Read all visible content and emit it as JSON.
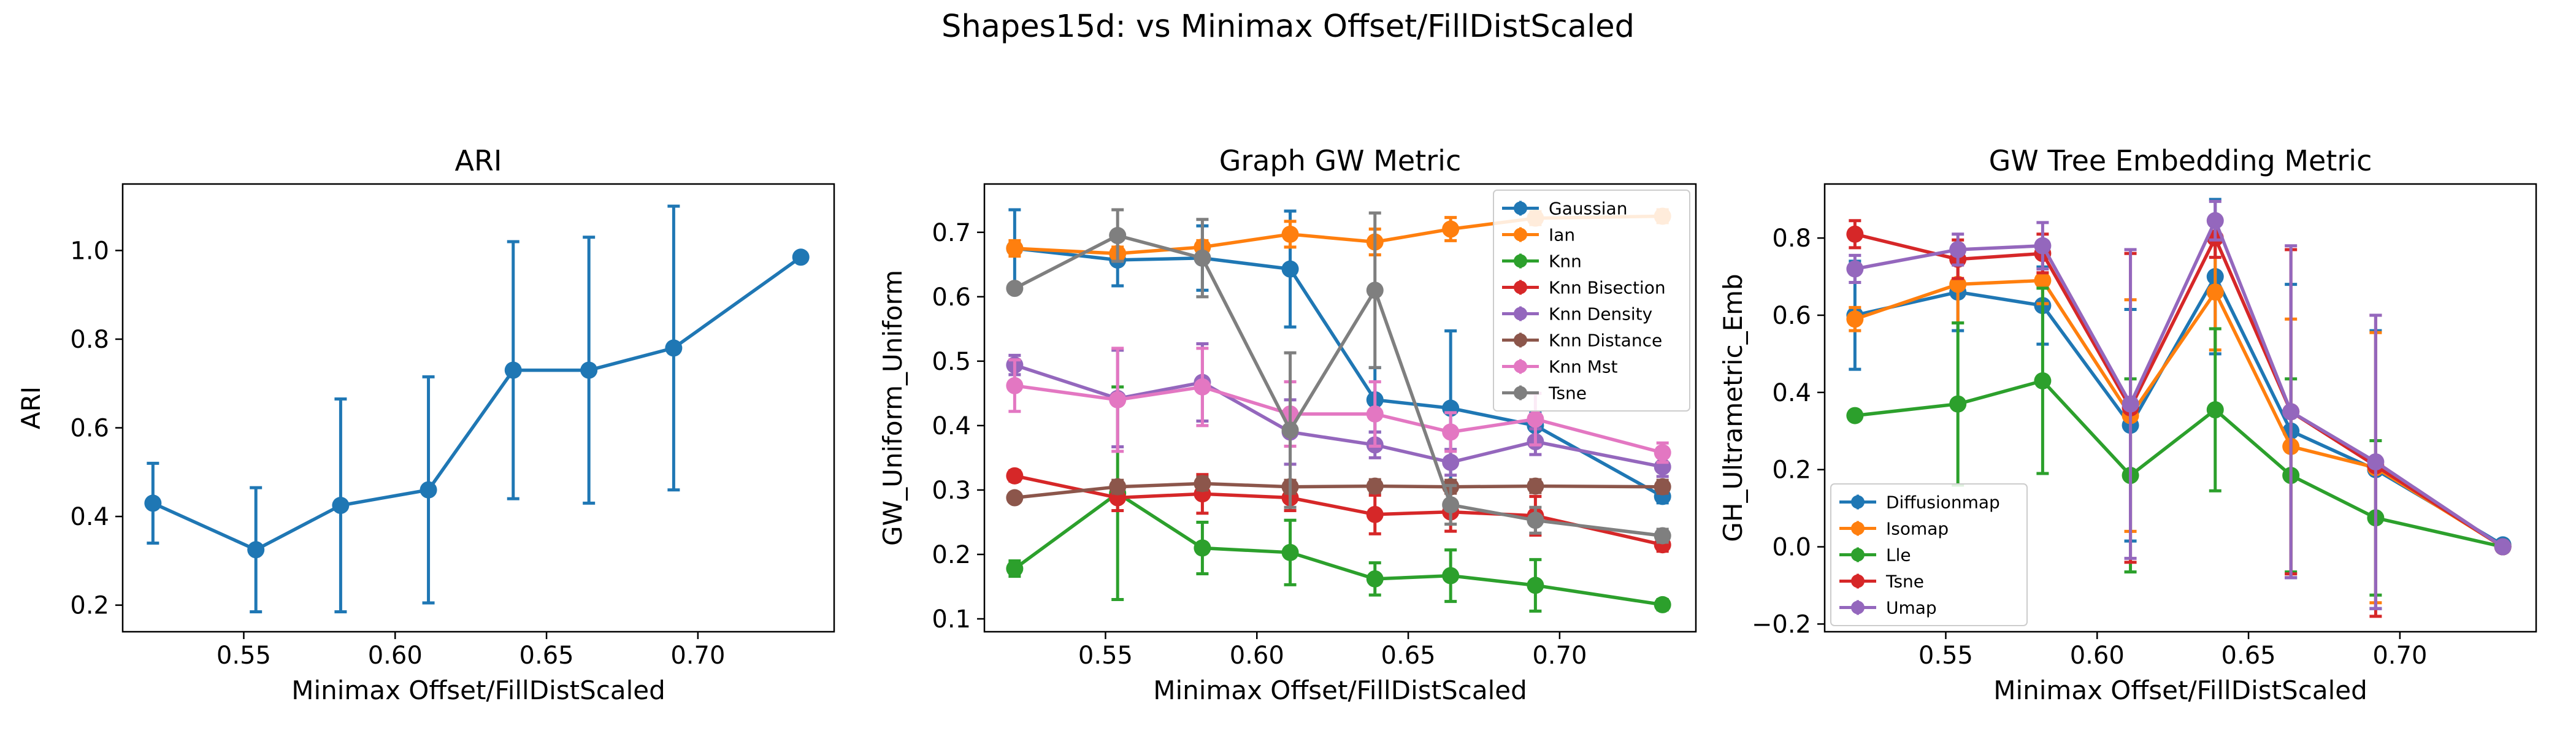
{
  "suptitle": "Shapes15d: vs Minimax Offset/FillDistScaled",
  "colors": {
    "blue": "#1f77b4",
    "orange": "#ff7f0e",
    "green": "#2ca02c",
    "red": "#d62728",
    "purple": "#9467bd",
    "brown": "#8c564b",
    "pink": "#e377c2",
    "gray": "#7f7f7f"
  },
  "chart_data": [
    {
      "type": "line",
      "title": "ARI",
      "xlabel": "Minimax Offset/FillDistScaled",
      "ylabel": "ARI",
      "xlim": [
        0.51,
        0.745
      ],
      "ylim": [
        0.14,
        1.15
      ],
      "xticks": [
        "0.55",
        "0.60",
        "0.65",
        "0.70"
      ],
      "yticks": [
        "0.2",
        "0.4",
        "0.6",
        "0.8",
        "1.0"
      ],
      "grid": false,
      "x": [
        0.52,
        0.554,
        0.582,
        0.611,
        0.639,
        0.664,
        0.692,
        0.734
      ],
      "series": [
        {
          "color": "blue",
          "y": [
            0.43,
            0.325,
            0.425,
            0.46,
            0.73,
            0.73,
            0.78,
            0.985
          ],
          "err": [
            0.09,
            0.14,
            0.24,
            0.255,
            0.29,
            0.3,
            0.32,
            0.0
          ]
        }
      ]
    },
    {
      "type": "line",
      "title": "Graph GW Metric",
      "xlabel": "Minimax Offset/FillDistScaled",
      "ylabel": "GW_Uniform_Uniform",
      "xlim": [
        0.51,
        0.745
      ],
      "ylim": [
        0.08,
        0.775
      ],
      "xticks": [
        "0.55",
        "0.60",
        "0.65",
        "0.70"
      ],
      "yticks": [
        "0.1",
        "0.2",
        "0.3",
        "0.4",
        "0.5",
        "0.6",
        "0.7"
      ],
      "grid": false,
      "legend": "top-right",
      "x": [
        0.52,
        0.554,
        0.582,
        0.611,
        0.639,
        0.664,
        0.692,
        0.734
      ],
      "series": [
        {
          "name": "Gaussian",
          "color": "blue",
          "y": [
            0.675,
            0.657,
            0.66,
            0.643,
            0.44,
            0.427,
            0.4,
            0.29
          ],
          "err": [
            0.06,
            0.04,
            0.05,
            0.09,
            0.05,
            0.12,
            0.02,
            0.01
          ]
        },
        {
          "name": "Ian",
          "color": "orange",
          "y": [
            0.675,
            0.667,
            0.677,
            0.697,
            0.685,
            0.705,
            0.722,
            0.725
          ],
          "err": [
            0.012,
            0.01,
            0.01,
            0.02,
            0.02,
            0.018,
            0.01,
            0.01
          ]
        },
        {
          "name": "Knn",
          "color": "green",
          "y": [
            0.178,
            0.295,
            0.21,
            0.203,
            0.162,
            0.167,
            0.152,
            0.122
          ],
          "err": [
            0.012,
            0.165,
            0.04,
            0.05,
            0.025,
            0.04,
            0.04,
            0.008
          ]
        },
        {
          "name": "Knn Bisection",
          "color": "red",
          "y": [
            0.322,
            0.288,
            0.294,
            0.288,
            0.262,
            0.266,
            0.26,
            0.215
          ],
          "err": [
            0.008,
            0.02,
            0.03,
            0.02,
            0.03,
            0.03,
            0.03,
            0.01
          ]
        },
        {
          "name": "Knn Density",
          "color": "purple",
          "y": [
            0.494,
            0.442,
            0.467,
            0.39,
            0.37,
            0.343,
            0.375,
            0.336
          ],
          "err": [
            0.015,
            0.075,
            0.06,
            0.05,
            0.02,
            0.02,
            0.02,
            0.015
          ]
        },
        {
          "name": "Knn Distance",
          "color": "brown",
          "y": [
            0.288,
            0.305,
            0.31,
            0.305,
            0.306,
            0.305,
            0.306,
            0.305
          ],
          "err": [
            0.005,
            0.01,
            0.01,
            0.01,
            0.01,
            0.01,
            0.01,
            0.01
          ]
        },
        {
          "name": "Knn Mst",
          "color": "pink",
          "y": [
            0.462,
            0.44,
            0.46,
            0.418,
            0.418,
            0.39,
            0.41,
            0.358
          ],
          "err": [
            0.04,
            0.08,
            0.06,
            0.05,
            0.05,
            0.03,
            0.04,
            0.015
          ]
        },
        {
          "name": "Tsne",
          "color": "gray",
          "y": [
            0.613,
            0.695,
            0.66,
            0.393,
            0.61,
            0.277,
            0.253,
            0.229
          ],
          "err": [
            0.005,
            0.04,
            0.06,
            0.12,
            0.12,
            0.03,
            0.02,
            0.01
          ]
        }
      ]
    },
    {
      "type": "line",
      "title": "GW Tree Embedding Metric",
      "xlabel": "Minimax Offset/FillDistScaled",
      "ylabel": "GH_Ultrametric_Emb",
      "xlim": [
        0.51,
        0.745
      ],
      "ylim": [
        -0.22,
        0.94
      ],
      "xticks": [
        "0.55",
        "0.60",
        "0.65",
        "0.70"
      ],
      "yticks": [
        "−0.2",
        "0.0",
        "0.2",
        "0.4",
        "0.6",
        "0.8"
      ],
      "grid": false,
      "legend": "bottom-left",
      "x": [
        0.52,
        0.554,
        0.582,
        0.611,
        0.639,
        0.664,
        0.692,
        0.734
      ],
      "series": [
        {
          "name": "Diffusionmap",
          "color": "blue",
          "y": [
            0.6,
            0.66,
            0.625,
            0.315,
            0.7,
            0.3,
            0.2,
            0.005
          ],
          "err": [
            0.14,
            0.1,
            0.1,
            0.3,
            0.2,
            0.38,
            0.36,
            0.0
          ]
        },
        {
          "name": "Isomap",
          "color": "orange",
          "y": [
            0.59,
            0.68,
            0.69,
            0.34,
            0.66,
            0.26,
            0.205,
            0.0
          ],
          "err": [
            0.03,
            0.1,
            0.06,
            0.3,
            0.15,
            0.33,
            0.35,
            0.0
          ]
        },
        {
          "name": "Lle",
          "color": "green",
          "y": [
            0.34,
            0.37,
            0.43,
            0.185,
            0.355,
            0.185,
            0.075,
            0.0
          ],
          "err": [
            0.0,
            0.21,
            0.24,
            0.25,
            0.21,
            0.25,
            0.2,
            0.0
          ]
        },
        {
          "name": "Tsne",
          "color": "red",
          "y": [
            0.81,
            0.745,
            0.76,
            0.36,
            0.8,
            0.35,
            0.21,
            0.0
          ],
          "err": [
            0.035,
            0.05,
            0.05,
            0.4,
            0.05,
            0.42,
            0.39,
            0.0
          ]
        },
        {
          "name": "Umap",
          "color": "purple",
          "y": [
            0.72,
            0.77,
            0.78,
            0.37,
            0.845,
            0.35,
            0.22,
            0.0
          ],
          "err": [
            0.035,
            0.04,
            0.06,
            0.4,
            0.05,
            0.43,
            0.38,
            0.0
          ]
        }
      ]
    }
  ]
}
